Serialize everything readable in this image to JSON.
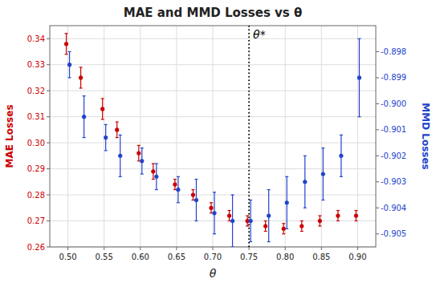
{
  "chart_data": {
    "type": "scatter",
    "title": "MAE and MMD Losses vs θ",
    "xlabel": "θ",
    "ylabel": "MAE Losses",
    "y2label": "MMD Losses",
    "x": [
      0.5,
      0.52,
      0.55,
      0.57,
      0.6,
      0.62,
      0.65,
      0.675,
      0.7,
      0.725,
      0.75,
      0.775,
      0.8,
      0.825,
      0.85,
      0.875,
      0.9
    ],
    "series": [
      {
        "color": "#cc0000",
        "marker": "circle",
        "values": [
          0.338,
          0.325,
          0.313,
          0.305,
          0.296,
          0.289,
          0.284,
          0.28,
          0.275,
          0.272,
          0.27,
          0.268,
          0.267,
          0.268,
          0.27,
          0.272,
          0.272
        ],
        "errors": [
          0.004,
          0.004,
          0.004,
          0.003,
          0.003,
          0.003,
          0.002,
          0.002,
          0.002,
          0.002,
          0.002,
          0.002,
          0.002,
          0.002,
          0.002,
          0.002,
          0.002
        ]
      },
      {
        "color": "#2244cc",
        "marker": "circle",
        "axis": "y2",
        "values": [
          -0.8985,
          -0.9005,
          -0.9013,
          -0.902,
          -0.9022,
          -0.9028,
          -0.9033,
          -0.9037,
          -0.9042,
          -0.9045,
          -0.9045,
          -0.9043,
          -0.9038,
          -0.903,
          -0.9027,
          -0.902,
          -0.899
        ],
        "errors": [
          0.0005,
          0.0008,
          0.0005,
          0.0008,
          0.0005,
          0.0005,
          0.0005,
          0.0008,
          0.0008,
          0.001,
          0.0008,
          0.001,
          0.001,
          0.001,
          0.001,
          0.0008,
          0.0015
        ]
      }
    ],
    "reference_line": {
      "x": 0.75,
      "label": "θ*"
    },
    "xlim": [
      0.475,
      0.925
    ],
    "xticks": [
      {
        "value": 0.5,
        "label": "0.50"
      },
      0.55,
      {
        "value": 0.6,
        "label": "0.60"
      },
      0.65,
      {
        "value": 0.7,
        "label": "0.70"
      },
      0.75,
      {
        "value": 0.8,
        "label": "0.80"
      },
      0.85,
      {
        "value": 0.9,
        "label": "0.90"
      }
    ],
    "ylim": [
      0.26,
      0.345
    ],
    "yticks": [
      0.26,
      0.27,
      0.28,
      0.29,
      {
        "value": 0.3,
        "label": "0.30"
      },
      0.31,
      0.32,
      0.33,
      0.34
    ],
    "y2lim": [
      -0.9055,
      -0.897
    ],
    "y2ticks": [
      -0.898,
      -0.899,
      {
        "value": -0.9,
        "label": "-0.900"
      },
      -0.901,
      -0.902,
      -0.903,
      -0.904,
      -0.905
    ],
    "grid": true
  }
}
